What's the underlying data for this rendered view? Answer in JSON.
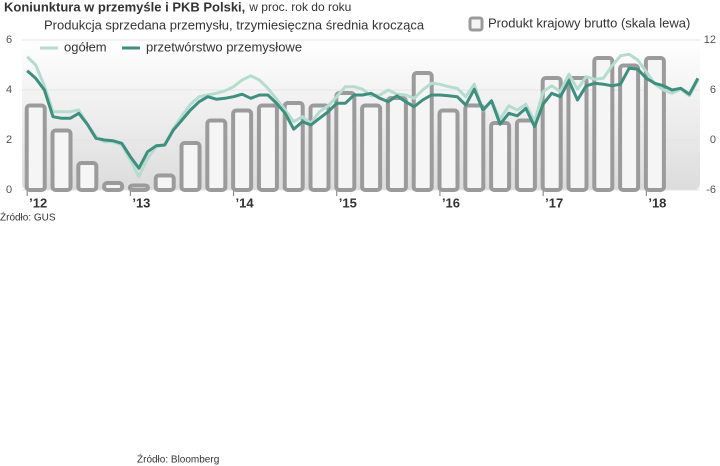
{
  "chart_data": {
    "type": "bar-line",
    "title": "Koniunktura w przemyśle i PKB Polski,",
    "subtitle": "w proc. rok do roku",
    "annotation": "Produkcja sprzedana przemysłu, trzymiesięczna średnia krocząca",
    "source": "Źródło: GUS",
    "source2": "Źródło: Bloomberg",
    "xlim": [
      2011.95,
      2018.52
    ],
    "xticks": [
      {
        "value": 2012,
        "label": "’12"
      },
      {
        "value": 2013,
        "label": "’13"
      },
      {
        "value": 2014,
        "label": "’14"
      },
      {
        "value": 2015,
        "label": "’15"
      },
      {
        "value": 2016,
        "label": "’16"
      },
      {
        "value": 2017,
        "label": "’17"
      },
      {
        "value": 2018,
        "label": "’18"
      }
    ],
    "ylim": [
      0,
      6
    ],
    "yticks": [
      0,
      2,
      4,
      6
    ],
    "y2lim": [
      -6,
      12
    ],
    "y2ticks": [
      -6,
      0,
      6,
      12
    ],
    "grid": true,
    "series": [
      {
        "name": "Produkt krajowy brutto (skala lewa)",
        "type": "bar",
        "color": "#9b9b9b",
        "x": [
          2012.083,
          2012.333,
          2012.583,
          2012.833,
          2013.083,
          2013.333,
          2013.583,
          2013.833,
          2014.083,
          2014.333,
          2014.583,
          2014.833,
          2015.083,
          2015.333,
          2015.583,
          2015.833,
          2016.083,
          2016.333,
          2016.583,
          2016.833,
          2017.083,
          2017.333,
          2017.583,
          2017.833,
          2018.083
        ],
        "values": [
          3.3,
          2.3,
          1.0,
          0.2,
          0.1,
          0.5,
          1.8,
          2.7,
          3.1,
          3.3,
          3.4,
          3.3,
          3.8,
          3.3,
          3.6,
          4.6,
          3.1,
          3.3,
          2.6,
          2.7,
          4.4,
          4.4,
          5.2,
          4.9,
          5.2
        ]
      },
      {
        "name": "ogółem",
        "type": "line",
        "axis": "y2",
        "color": "#b6dccf",
        "x": [
          2012,
          2012.083,
          2012.167,
          2012.25,
          2012.333,
          2012.417,
          2012.5,
          2012.583,
          2012.667,
          2012.75,
          2012.833,
          2012.917,
          2013,
          2013.083,
          2013.167,
          2013.25,
          2013.333,
          2013.417,
          2013.5,
          2013.583,
          2013.667,
          2013.75,
          2013.833,
          2013.917,
          2014,
          2014.083,
          2014.167,
          2014.25,
          2014.333,
          2014.417,
          2014.5,
          2014.583,
          2014.667,
          2014.75,
          2014.833,
          2014.917,
          2015,
          2015.083,
          2015.167,
          2015.25,
          2015.333,
          2015.417,
          2015.5,
          2015.583,
          2015.667,
          2015.75,
          2015.833,
          2015.917,
          2016,
          2016.083,
          2016.167,
          2016.25,
          2016.333,
          2016.417,
          2016.5,
          2016.583,
          2016.667,
          2016.75,
          2016.833,
          2016.917,
          2017,
          2017.083,
          2017.167,
          2017.25,
          2017.333,
          2017.417,
          2017.5,
          2017.583,
          2017.667,
          2017.75,
          2017.833,
          2017.917,
          2018,
          2018.083,
          2018.167,
          2018.25,
          2018.333,
          2018.417,
          2018.5
        ],
        "values": [
          10.0,
          9.0,
          6.5,
          3.4,
          3.4,
          3.4,
          3.6,
          1.9,
          0.4,
          -0.2,
          -0.2,
          -0.6,
          -2.4,
          -4.4,
          -2.2,
          -0.8,
          -0.6,
          1.4,
          2.9,
          4.3,
          5.2,
          5.4,
          5.6,
          5.9,
          6.4,
          7.2,
          7.7,
          7.2,
          6.2,
          4.9,
          3.6,
          2.2,
          2.8,
          2.0,
          3.4,
          4.1,
          5.2,
          6.4,
          6.4,
          6.1,
          5.3,
          5.4,
          6.0,
          5.5,
          5.4,
          5.0,
          6.0,
          6.8,
          6.7,
          6.4,
          6.2,
          5.2,
          6.7,
          3.5,
          4.7,
          2.5,
          4.1,
          3.6,
          4.3,
          2.2,
          5.8,
          6.5,
          5.8,
          7.9,
          6.1,
          7.6,
          7.3,
          7.4,
          8.9,
          10.1,
          10.3,
          9.6,
          8.2,
          6.7,
          6.0,
          5.6,
          6.1,
          5.3,
          7.2
        ]
      },
      {
        "name": "przetwórstwo przemysłowe",
        "type": "line",
        "axis": "y2",
        "color": "#3f8f7f",
        "x": [
          2012,
          2012.083,
          2012.167,
          2012.25,
          2012.333,
          2012.417,
          2012.5,
          2012.583,
          2012.667,
          2012.75,
          2012.833,
          2012.917,
          2013,
          2013.083,
          2013.167,
          2013.25,
          2013.333,
          2013.417,
          2013.5,
          2013.583,
          2013.667,
          2013.75,
          2013.833,
          2013.917,
          2014,
          2014.083,
          2014.167,
          2014.25,
          2014.333,
          2014.417,
          2014.5,
          2014.583,
          2014.667,
          2014.75,
          2014.833,
          2014.917,
          2015,
          2015.083,
          2015.167,
          2015.25,
          2015.333,
          2015.417,
          2015.5,
          2015.583,
          2015.667,
          2015.75,
          2015.833,
          2015.917,
          2016,
          2016.083,
          2016.167,
          2016.25,
          2016.333,
          2016.417,
          2016.5,
          2016.583,
          2016.667,
          2016.75,
          2016.833,
          2016.917,
          2017,
          2017.083,
          2017.167,
          2017.25,
          2017.333,
          2017.417,
          2017.5,
          2017.583,
          2017.667,
          2017.75,
          2017.833,
          2017.917,
          2018,
          2018.083,
          2018.167,
          2018.25,
          2018.333,
          2018.417,
          2018.5
        ],
        "values": [
          8.3,
          7.4,
          6.0,
          2.8,
          2.6,
          2.6,
          3.2,
          1.9,
          0.2,
          0,
          -0.1,
          -0.4,
          -2.0,
          -3.4,
          -1.4,
          -0.7,
          -0.6,
          1.2,
          2.4,
          3.6,
          4.6,
          5.2,
          4.9,
          5.0,
          5.2,
          5.5,
          5.0,
          5.4,
          5.4,
          4.4,
          3.2,
          1.3,
          2.2,
          1.8,
          2.6,
          3.4,
          4.4,
          4.4,
          5.4,
          5.4,
          5.6,
          5.0,
          4.6,
          5.3,
          4.6,
          4.0,
          4.8,
          5.4,
          5.4,
          5.3,
          5.2,
          4.2,
          6.1,
          3.6,
          4.7,
          1.9,
          3.2,
          2.9,
          3.8,
          1.6,
          4.3,
          5.6,
          5.2,
          7.1,
          4.8,
          6.5,
          6.8,
          6.7,
          6.5,
          6.7,
          8.6,
          8.5,
          7.4,
          6.8,
          6.5,
          6.0,
          6.2,
          5.5,
          7.4
        ]
      }
    ]
  }
}
